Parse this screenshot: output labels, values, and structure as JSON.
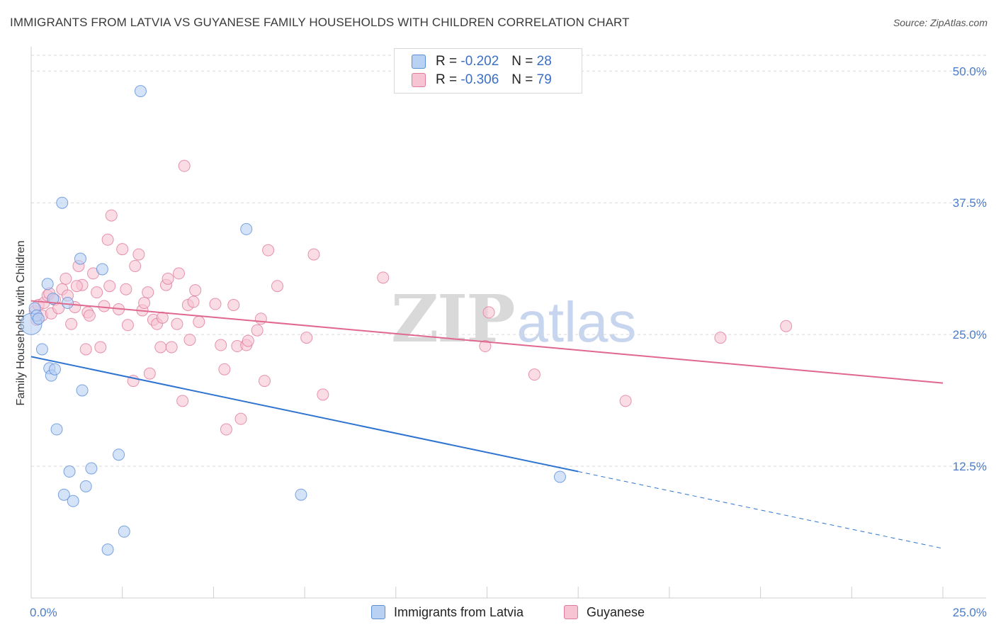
{
  "title": "IMMIGRANTS FROM LATVIA VS GUYANESE FAMILY HOUSEHOLDS WITH CHILDREN CORRELATION CHART",
  "source": "Source: ZipAtlas.com",
  "watermark": {
    "zip": "ZIP",
    "atlas": "atlas"
  },
  "legend": {
    "r_label": "R =",
    "n_label": "N =",
    "series": [
      {
        "r": "-0.202",
        "n": "28"
      },
      {
        "r": "-0.306",
        "n": "79"
      }
    ]
  },
  "colors": {
    "blue_fill": "#b9d1f3",
    "blue_stroke": "#5b8fd8",
    "blue_line": "#2f74d0",
    "pink_fill": "#f7c4d3",
    "pink_stroke": "#e07b9c",
    "pink_line": "#e0688f",
    "grid": "#d9d9d9",
    "tick_text": "#4a7cc9"
  },
  "chart_data": {
    "type": "scatter",
    "title": "IMMIGRANTS FROM LATVIA VS GUYANESE FAMILY HOUSEHOLDS WITH CHILDREN CORRELATION CHART",
    "xlabel": "",
    "ylabel": "Family Households with Children",
    "xlim": [
      0,
      25
    ],
    "ylim": [
      0,
      51.5
    ],
    "x_tick_labels": [
      "0.0%",
      "25.0%"
    ],
    "y_ticks": [
      12.5,
      25.0,
      37.5,
      50.0
    ],
    "y_tick_labels": [
      "12.5%",
      "25.0%",
      "37.5%",
      "50.0%"
    ],
    "series": [
      {
        "name": "Immigrants from Latvia",
        "r": -0.202,
        "n": 28,
        "points": [
          [
            0.0,
            26.0
          ],
          [
            0.1,
            27.5
          ],
          [
            0.15,
            26.8
          ],
          [
            0.3,
            23.6
          ],
          [
            0.45,
            29.8
          ],
          [
            0.5,
            21.8
          ],
          [
            0.55,
            21.1
          ],
          [
            0.6,
            28.4
          ],
          [
            0.65,
            21.7
          ],
          [
            0.7,
            16.0
          ],
          [
            0.85,
            37.5
          ],
          [
            0.9,
            9.8
          ],
          [
            1.0,
            28.0
          ],
          [
            1.05,
            12.0
          ],
          [
            1.15,
            9.2
          ],
          [
            1.35,
            32.2
          ],
          [
            1.4,
            19.7
          ],
          [
            1.5,
            10.6
          ],
          [
            1.65,
            12.3
          ],
          [
            1.95,
            31.2
          ],
          [
            2.1,
            4.6
          ],
          [
            2.4,
            13.6
          ],
          [
            2.55,
            6.3
          ],
          [
            3.0,
            48.1
          ],
          [
            5.9,
            35.0
          ],
          [
            7.4,
            9.8
          ],
          [
            14.5,
            11.5
          ],
          [
            0.2,
            26.5
          ]
        ],
        "trend": {
          "x0": 0,
          "y0": 22.9,
          "x1": 15.0,
          "y1": 12.0,
          "dash_x1": 25.0,
          "dash_y1": 4.7
        }
      },
      {
        "name": "Guyanese",
        "r": -0.306,
        "n": 79,
        "points": [
          [
            0.1,
            27.2
          ],
          [
            0.15,
            26.4
          ],
          [
            0.2,
            27.8
          ],
          [
            0.3,
            26.8
          ],
          [
            0.35,
            28.0
          ],
          [
            0.45,
            28.7
          ],
          [
            0.5,
            28.9
          ],
          [
            0.55,
            27.0
          ],
          [
            0.65,
            28.3
          ],
          [
            0.75,
            27.5
          ],
          [
            0.85,
            29.3
          ],
          [
            0.95,
            30.3
          ],
          [
            1.0,
            28.7
          ],
          [
            1.1,
            26.0
          ],
          [
            1.2,
            27.6
          ],
          [
            1.3,
            31.5
          ],
          [
            1.4,
            29.7
          ],
          [
            1.5,
            23.6
          ],
          [
            1.55,
            27.1
          ],
          [
            1.6,
            26.8
          ],
          [
            1.7,
            30.8
          ],
          [
            1.8,
            29.0
          ],
          [
            1.9,
            23.8
          ],
          [
            2.0,
            27.7
          ],
          [
            2.1,
            34.0
          ],
          [
            2.15,
            29.6
          ],
          [
            2.2,
            36.3
          ],
          [
            2.4,
            27.4
          ],
          [
            2.5,
            33.1
          ],
          [
            2.6,
            29.3
          ],
          [
            2.65,
            25.9
          ],
          [
            2.8,
            20.6
          ],
          [
            2.85,
            31.5
          ],
          [
            2.95,
            32.6
          ],
          [
            3.05,
            27.3
          ],
          [
            3.1,
            28.0
          ],
          [
            3.2,
            29.0
          ],
          [
            3.25,
            21.3
          ],
          [
            3.35,
            26.4
          ],
          [
            3.45,
            26.0
          ],
          [
            3.55,
            23.8
          ],
          [
            3.6,
            26.6
          ],
          [
            3.7,
            29.7
          ],
          [
            3.75,
            30.3
          ],
          [
            3.85,
            23.8
          ],
          [
            4.0,
            26.0
          ],
          [
            4.05,
            30.8
          ],
          [
            4.15,
            18.7
          ],
          [
            4.2,
            41.0
          ],
          [
            4.3,
            27.8
          ],
          [
            4.35,
            24.5
          ],
          [
            4.45,
            28.1
          ],
          [
            4.5,
            29.2
          ],
          [
            4.6,
            26.2
          ],
          [
            5.05,
            27.9
          ],
          [
            5.2,
            24.0
          ],
          [
            5.3,
            21.7
          ],
          [
            5.35,
            16.0
          ],
          [
            5.55,
            27.8
          ],
          [
            5.65,
            23.9
          ],
          [
            5.75,
            17.0
          ],
          [
            5.9,
            24.0
          ],
          [
            5.95,
            24.4
          ],
          [
            6.2,
            25.4
          ],
          [
            6.3,
            26.5
          ],
          [
            6.4,
            20.6
          ],
          [
            6.5,
            33.0
          ],
          [
            6.75,
            29.6
          ],
          [
            7.55,
            24.7
          ],
          [
            7.75,
            32.6
          ],
          [
            8.0,
            19.3
          ],
          [
            9.65,
            30.4
          ],
          [
            12.45,
            23.9
          ],
          [
            12.55,
            27.1
          ],
          [
            13.8,
            21.2
          ],
          [
            16.3,
            18.7
          ],
          [
            18.9,
            24.7
          ],
          [
            20.7,
            25.8
          ],
          [
            1.25,
            29.6
          ]
        ],
        "trend": {
          "x0": 0,
          "y0": 28.2,
          "x1": 25.0,
          "y1": 20.4
        }
      }
    ]
  },
  "bottom_legend": [
    "Immigrants from Latvia",
    "Guyanese"
  ]
}
